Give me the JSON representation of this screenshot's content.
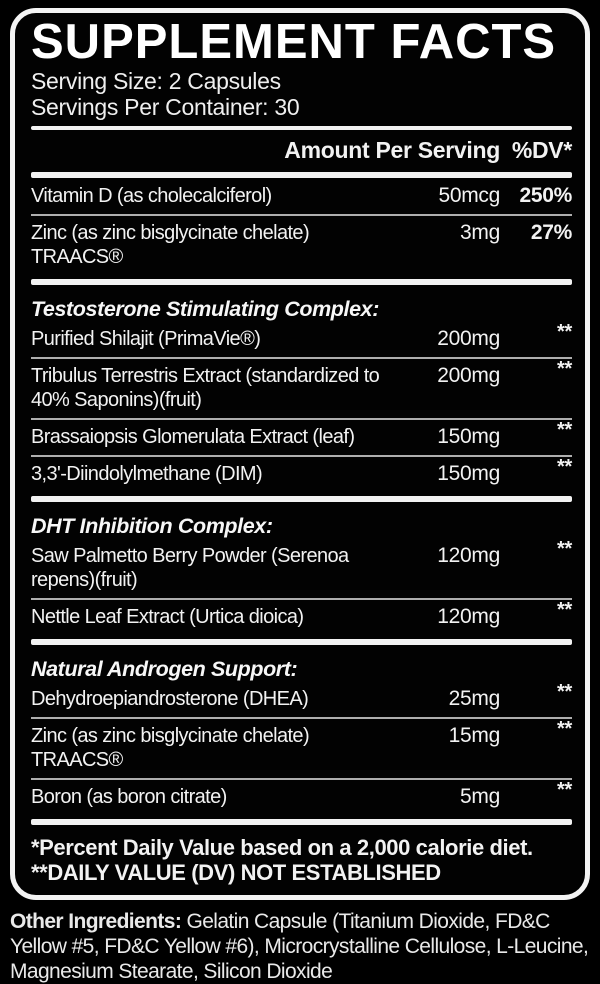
{
  "panel": {
    "title": "SUPPLEMENT FACTS",
    "serving_size": "Serving Size: 2 Capsules",
    "servings_per_container": "Servings Per Container: 30",
    "columns": {
      "amount": "Amount Per Serving",
      "dv": "%DV*"
    },
    "sections": [
      {
        "rows": [
          {
            "name": "Vitamin D (as cholecalciferol)",
            "amount": "50mcg",
            "dv": "250%"
          },
          {
            "name": "Zinc (as zinc bisglycinate chelate) TRAACS®",
            "amount": "3mg",
            "dv": "27%"
          }
        ]
      },
      {
        "heading": "Testosterone Stimulating Complex:",
        "rows": [
          {
            "name": "Purified Shilajit (PrimaVie®)",
            "amount": "200mg",
            "dv": "**"
          },
          {
            "name": "Tribulus Terrestris Extract (standardized to 40% Saponins)(fruit)",
            "amount": "200mg",
            "dv": "**"
          },
          {
            "name": "Brassaiopsis Glomerulata Extract (leaf)",
            "amount": "150mg",
            "dv": "**"
          },
          {
            "name": "3,3'-Diindolylmethane (DIM)",
            "amount": "150mg",
            "dv": "**"
          }
        ]
      },
      {
        "heading": "DHT Inhibition Complex:",
        "rows": [
          {
            "name": "Saw Palmetto Berry Powder (Serenoa repens)(fruit)",
            "amount": "120mg",
            "dv": "**"
          },
          {
            "name": "Nettle Leaf Extract (Urtica dioica)",
            "amount": "120mg",
            "dv": "**"
          }
        ]
      },
      {
        "heading": "Natural Androgen Support:",
        "rows": [
          {
            "name": "Dehydroepiandrosterone (DHEA)",
            "amount": "25mg",
            "dv": "**"
          },
          {
            "name": "Zinc (as zinc bisglycinate chelate) TRAACS®",
            "amount": "15mg",
            "dv": "**"
          },
          {
            "name": "Boron (as boron citrate)",
            "amount": "5mg",
            "dv": "**"
          }
        ]
      }
    ],
    "footnotes": [
      "*Percent Daily Value based on a 2,000 calorie diet.",
      "**DAILY VALUE (DV) NOT ESTABLISHED"
    ]
  },
  "other_ingredients": {
    "label": "Other Ingredients:",
    "text": " Gelatin Capsule (Titanium Dioxide, FD&C Yellow #5, FD&C Yellow #6), Microcrystalline Cellulose, L-Leucine, Magnesium Stearate, Silicon Dioxide"
  },
  "colors": {
    "background": "#000000",
    "panel_border": "#f4f4f4",
    "text": "#f2f2f2",
    "divider": "#aeaeae"
  }
}
